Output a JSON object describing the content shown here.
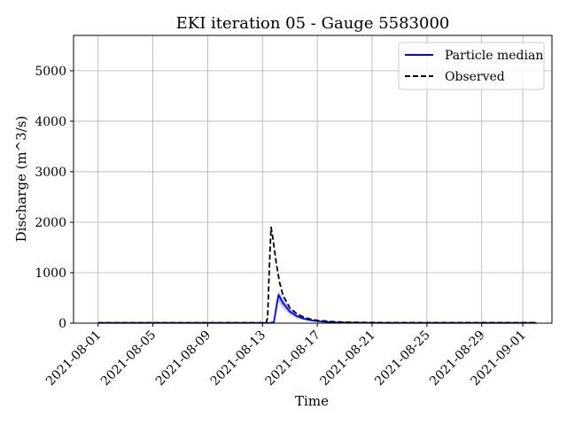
{
  "chart_data": {
    "type": "line",
    "title": "EKI iteration 05 - Gauge 5583000",
    "xlabel": "Time",
    "ylabel": "Discharge (m^3/s)",
    "xlim": [
      "2021-07-30T05:00",
      "2021-09-03T03:00"
    ],
    "ylim": [
      0,
      5700
    ],
    "grid": true,
    "legend_position": "top-right",
    "x_ticks": [
      "2021-08-01",
      "2021-08-05",
      "2021-08-09",
      "2021-08-13",
      "2021-08-17",
      "2021-08-21",
      "2021-08-25",
      "2021-08-29",
      "2021-09-01"
    ],
    "y_ticks": [
      0,
      1000,
      2000,
      3000,
      4000,
      5000
    ],
    "series": [
      {
        "name": "Particle median",
        "color": "#0000ff",
        "style": "solid",
        "band_color": "#0000ff",
        "points": [
          [
            "2021-08-01T00:00",
            5
          ],
          [
            "2021-08-13T12:00",
            5
          ],
          [
            "2021-08-13T20:00",
            20
          ],
          [
            "2021-08-14T00:00",
            300
          ],
          [
            "2021-08-14T04:00",
            560
          ],
          [
            "2021-08-14T12:00",
            400
          ],
          [
            "2021-08-15T00:00",
            230
          ],
          [
            "2021-08-15T12:00",
            140
          ],
          [
            "2021-08-16T00:00",
            90
          ],
          [
            "2021-08-16T12:00",
            60
          ],
          [
            "2021-08-17T00:00",
            40
          ],
          [
            "2021-08-17T12:00",
            28
          ],
          [
            "2021-08-18T00:00",
            20
          ],
          [
            "2021-08-19T00:00",
            12
          ],
          [
            "2021-08-20T00:00",
            8
          ],
          [
            "2021-08-22T00:00",
            5
          ],
          [
            "2021-09-02T00:00",
            5
          ]
        ],
        "band_lower": [
          [
            "2021-08-01T00:00",
            3
          ],
          [
            "2021-08-13T12:00",
            3
          ],
          [
            "2021-08-13T20:00",
            10
          ],
          [
            "2021-08-14T00:00",
            180
          ],
          [
            "2021-08-14T04:00",
            420
          ],
          [
            "2021-08-14T12:00",
            300
          ],
          [
            "2021-08-15T00:00",
            170
          ],
          [
            "2021-08-15T12:00",
            100
          ],
          [
            "2021-08-16T00:00",
            65
          ],
          [
            "2021-08-16T12:00",
            42
          ],
          [
            "2021-08-17T00:00",
            28
          ],
          [
            "2021-08-17T12:00",
            20
          ],
          [
            "2021-08-18T00:00",
            14
          ],
          [
            "2021-08-19T00:00",
            8
          ],
          [
            "2021-08-20T00:00",
            5
          ],
          [
            "2021-08-22T00:00",
            3
          ],
          [
            "2021-09-02T00:00",
            3
          ]
        ],
        "band_upper": [
          [
            "2021-08-01T00:00",
            8
          ],
          [
            "2021-08-13T12:00",
            8
          ],
          [
            "2021-08-13T20:00",
            40
          ],
          [
            "2021-08-14T00:00",
            420
          ],
          [
            "2021-08-14T04:00",
            640
          ],
          [
            "2021-08-14T12:00",
            490
          ],
          [
            "2021-08-15T00:00",
            290
          ],
          [
            "2021-08-15T12:00",
            180
          ],
          [
            "2021-08-16T00:00",
            115
          ],
          [
            "2021-08-16T12:00",
            78
          ],
          [
            "2021-08-17T00:00",
            52
          ],
          [
            "2021-08-17T12:00",
            36
          ],
          [
            "2021-08-18T00:00",
            26
          ],
          [
            "2021-08-19T00:00",
            16
          ],
          [
            "2021-08-20T00:00",
            11
          ],
          [
            "2021-08-22T00:00",
            7
          ],
          [
            "2021-09-02T00:00",
            7
          ]
        ]
      },
      {
        "name": "Observed",
        "color": "#000000",
        "style": "dashed",
        "points": [
          [
            "2021-08-01T00:00",
            8
          ],
          [
            "2021-08-13T06:00",
            8
          ],
          [
            "2021-08-13T09:00",
            100
          ],
          [
            "2021-08-13T12:00",
            1100
          ],
          [
            "2021-08-13T15:00",
            1900
          ],
          [
            "2021-08-13T18:00",
            1700
          ],
          [
            "2021-08-14T00:00",
            1200
          ],
          [
            "2021-08-14T06:00",
            800
          ],
          [
            "2021-08-14T12:00",
            550
          ],
          [
            "2021-08-15T00:00",
            300
          ],
          [
            "2021-08-15T12:00",
            190
          ],
          [
            "2021-08-16T00:00",
            120
          ],
          [
            "2021-08-16T12:00",
            80
          ],
          [
            "2021-08-17T00:00",
            55
          ],
          [
            "2021-08-18T00:00",
            32
          ],
          [
            "2021-08-19T00:00",
            20
          ],
          [
            "2021-08-21T00:00",
            12
          ],
          [
            "2021-08-25T00:00",
            10
          ],
          [
            "2021-09-02T00:00",
            10
          ]
        ]
      }
    ]
  }
}
